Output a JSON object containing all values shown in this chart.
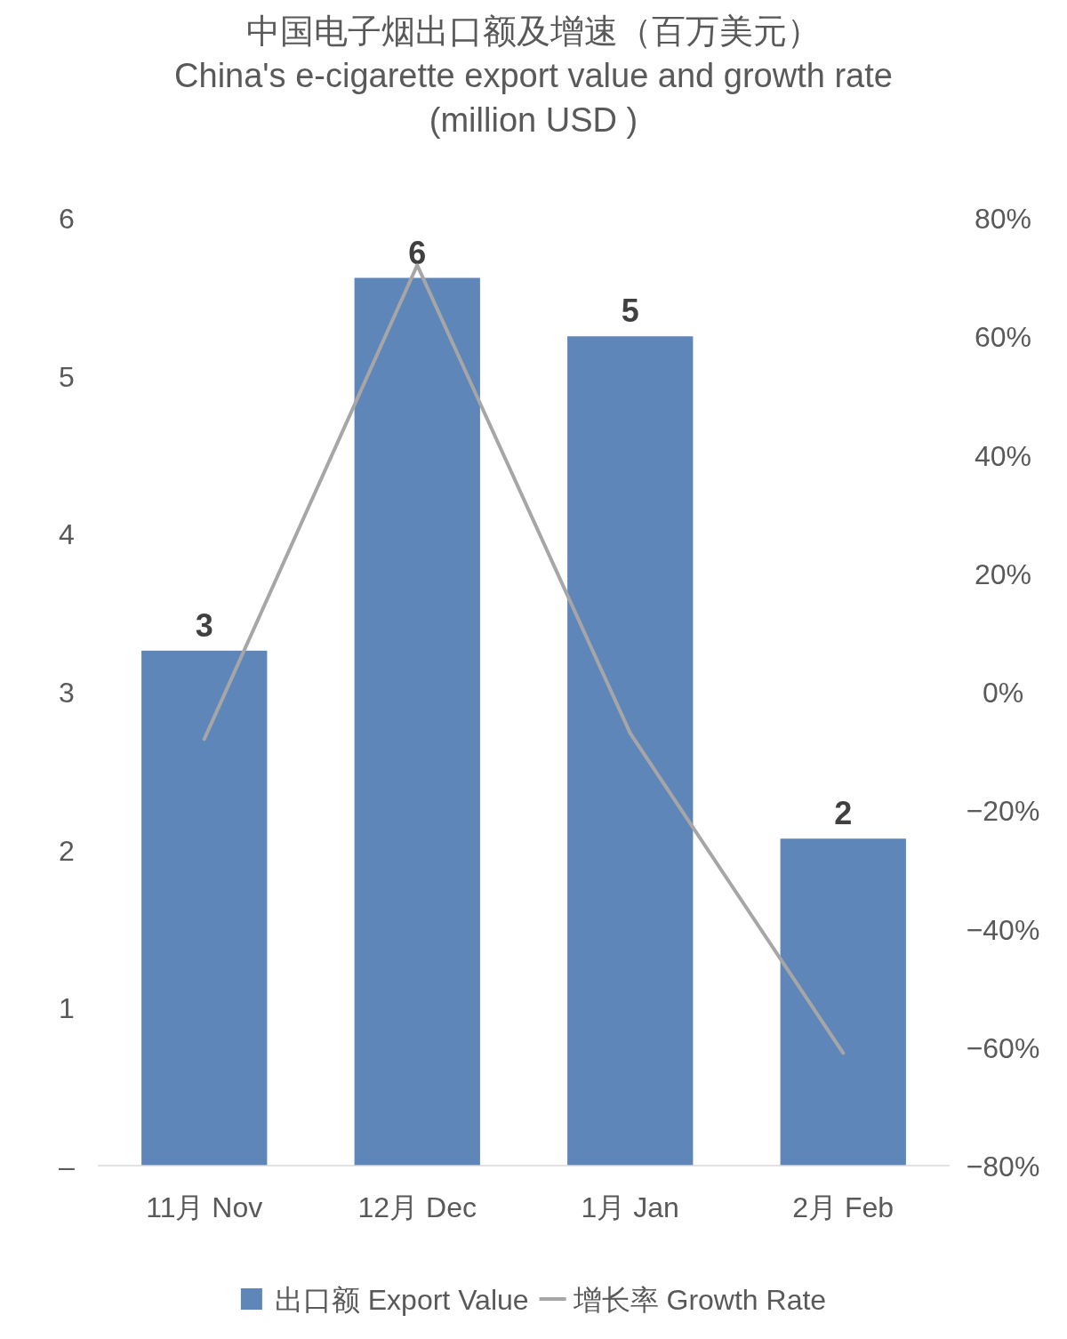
{
  "chart_data": {
    "type": "bar",
    "title": "中国电子烟出口额及增速（百万美元）",
    "subtitle": "China's e-cigarette export value and growth rate (million USD )",
    "categories": [
      "11月 Nov",
      "12月 Dec",
      "1月 Jan",
      "2月 Feb"
    ],
    "series": [
      {
        "name": "出口额 Export Value",
        "color": "#5f86b9",
        "values": [
          3.26,
          5.62,
          5.25,
          2.07
        ],
        "value_labels": [
          "3",
          "6",
          "5",
          "2"
        ]
      },
      {
        "name": "增长率 Growth Rate",
        "type": "line",
        "axis": "y2",
        "color": "#a6a6a6",
        "values": [
          -8,
          72,
          -7,
          -61
        ]
      }
    ],
    "ylim": [
      0,
      6
    ],
    "yticks": [
      {
        "value": 0,
        "label": "–"
      },
      1,
      2,
      3,
      4,
      5,
      6
    ],
    "y2lim": [
      -80,
      80
    ],
    "y2ticks": [
      {
        "value": 80,
        "label": "80%"
      },
      {
        "value": 60,
        "label": "60%"
      },
      {
        "value": 40,
        "label": "40%"
      },
      {
        "value": 20,
        "label": "20%"
      },
      {
        "value": 0,
        "label": "0%"
      },
      {
        "value": -20,
        "label": "−20%"
      },
      {
        "value": -40,
        "label": "−40%"
      },
      {
        "value": -60,
        "label": "−60%"
      },
      {
        "value": -80,
        "label": "−80%"
      }
    ],
    "legend": "bottom"
  }
}
